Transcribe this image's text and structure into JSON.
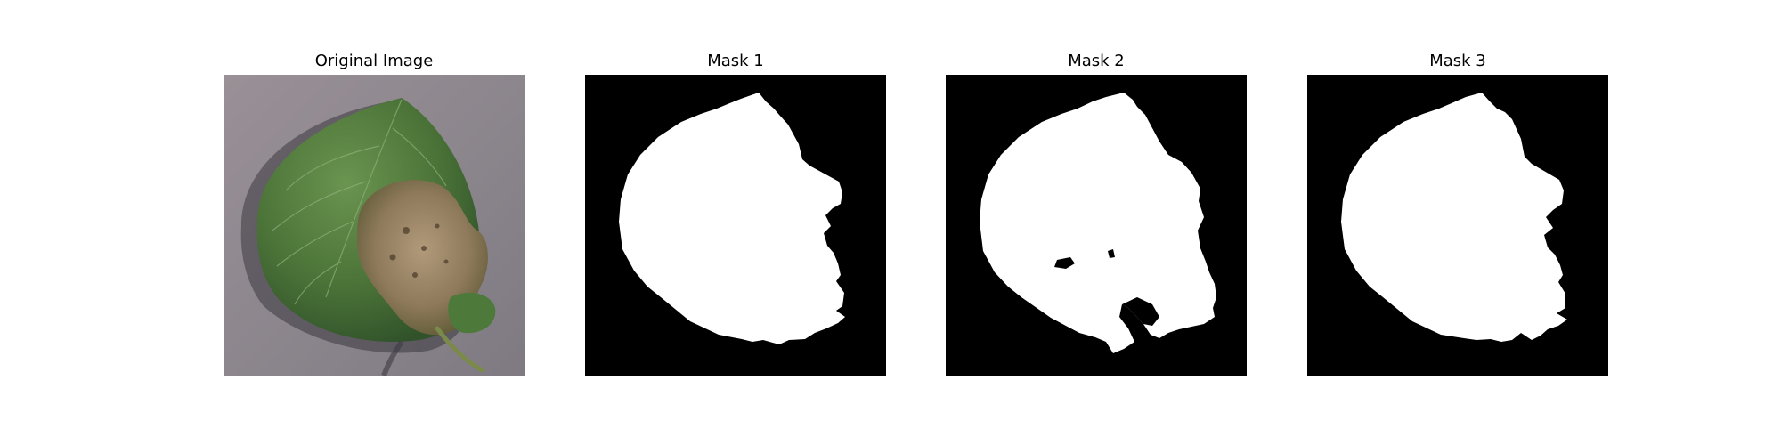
{
  "panels": [
    {
      "title": "Original Image",
      "kind": "photo"
    },
    {
      "title": "Mask 1",
      "kind": "mask"
    },
    {
      "title": "Mask 2",
      "kind": "mask"
    },
    {
      "title": "Mask 3",
      "kind": "mask"
    }
  ],
  "colors": {
    "background": "#ffffff",
    "mask_background": "#000000",
    "mask_foreground": "#ffffff",
    "ground": "#8f8a90",
    "leaf": "#4f7a3c",
    "leaf_dark": "#3a5e2c",
    "lesion": "#9a8566",
    "lesion_dark": "#5a4632"
  }
}
